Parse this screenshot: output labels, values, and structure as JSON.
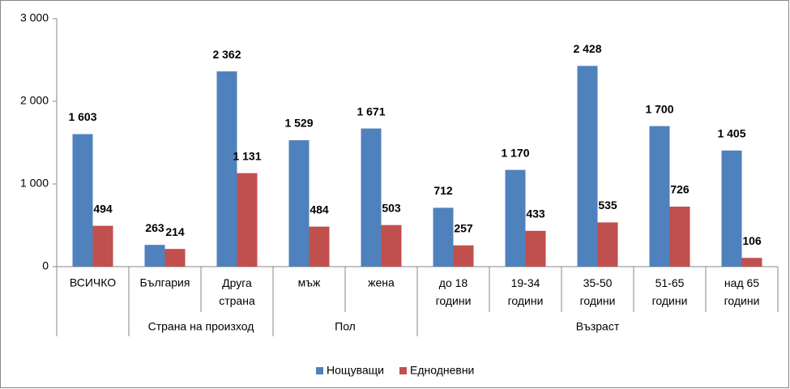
{
  "chart_data": {
    "type": "bar",
    "categories": [
      "ВСИЧКО",
      "България",
      "Друга страна",
      "мъж",
      "жена",
      "до 18 години",
      "19-34 години",
      "35-50 години",
      "51-65 години",
      "над 65 години"
    ],
    "groups": [
      null,
      "Страна на произход",
      "Страна на произход",
      "Пол",
      "Пол",
      "Възраст",
      "Възраст",
      "Възраст",
      "Възраст",
      "Възраст"
    ],
    "series": [
      {
        "name": "Нощуващи",
        "color": "#4f81bd",
        "values": [
          1603,
          263,
          2362,
          1529,
          1671,
          712,
          1170,
          2428,
          1700,
          1405
        ],
        "value_labels": [
          "1 603",
          "263",
          "2 362",
          "1 529",
          "1 671",
          "712",
          "1 170",
          "2 428",
          "1 700",
          "1 405"
        ]
      },
      {
        "name": "Еднодневни",
        "color": "#c0504d",
        "values": [
          494,
          214,
          1131,
          484,
          503,
          257,
          433,
          535,
          726,
          106
        ],
        "value_labels": [
          "494",
          "214",
          "1 131",
          "484",
          "503",
          "257",
          "433",
          "535",
          "726",
          "106"
        ]
      }
    ],
    "ylim": [
      0,
      3000
    ],
    "yticks": [
      0,
      {
        "value": 1000,
        "label": "1 000"
      },
      {
        "value": 2000,
        "label": "2 000"
      },
      {
        "value": 3000,
        "label": "3 000"
      }
    ],
    "grid": false,
    "legend": "bottom"
  }
}
